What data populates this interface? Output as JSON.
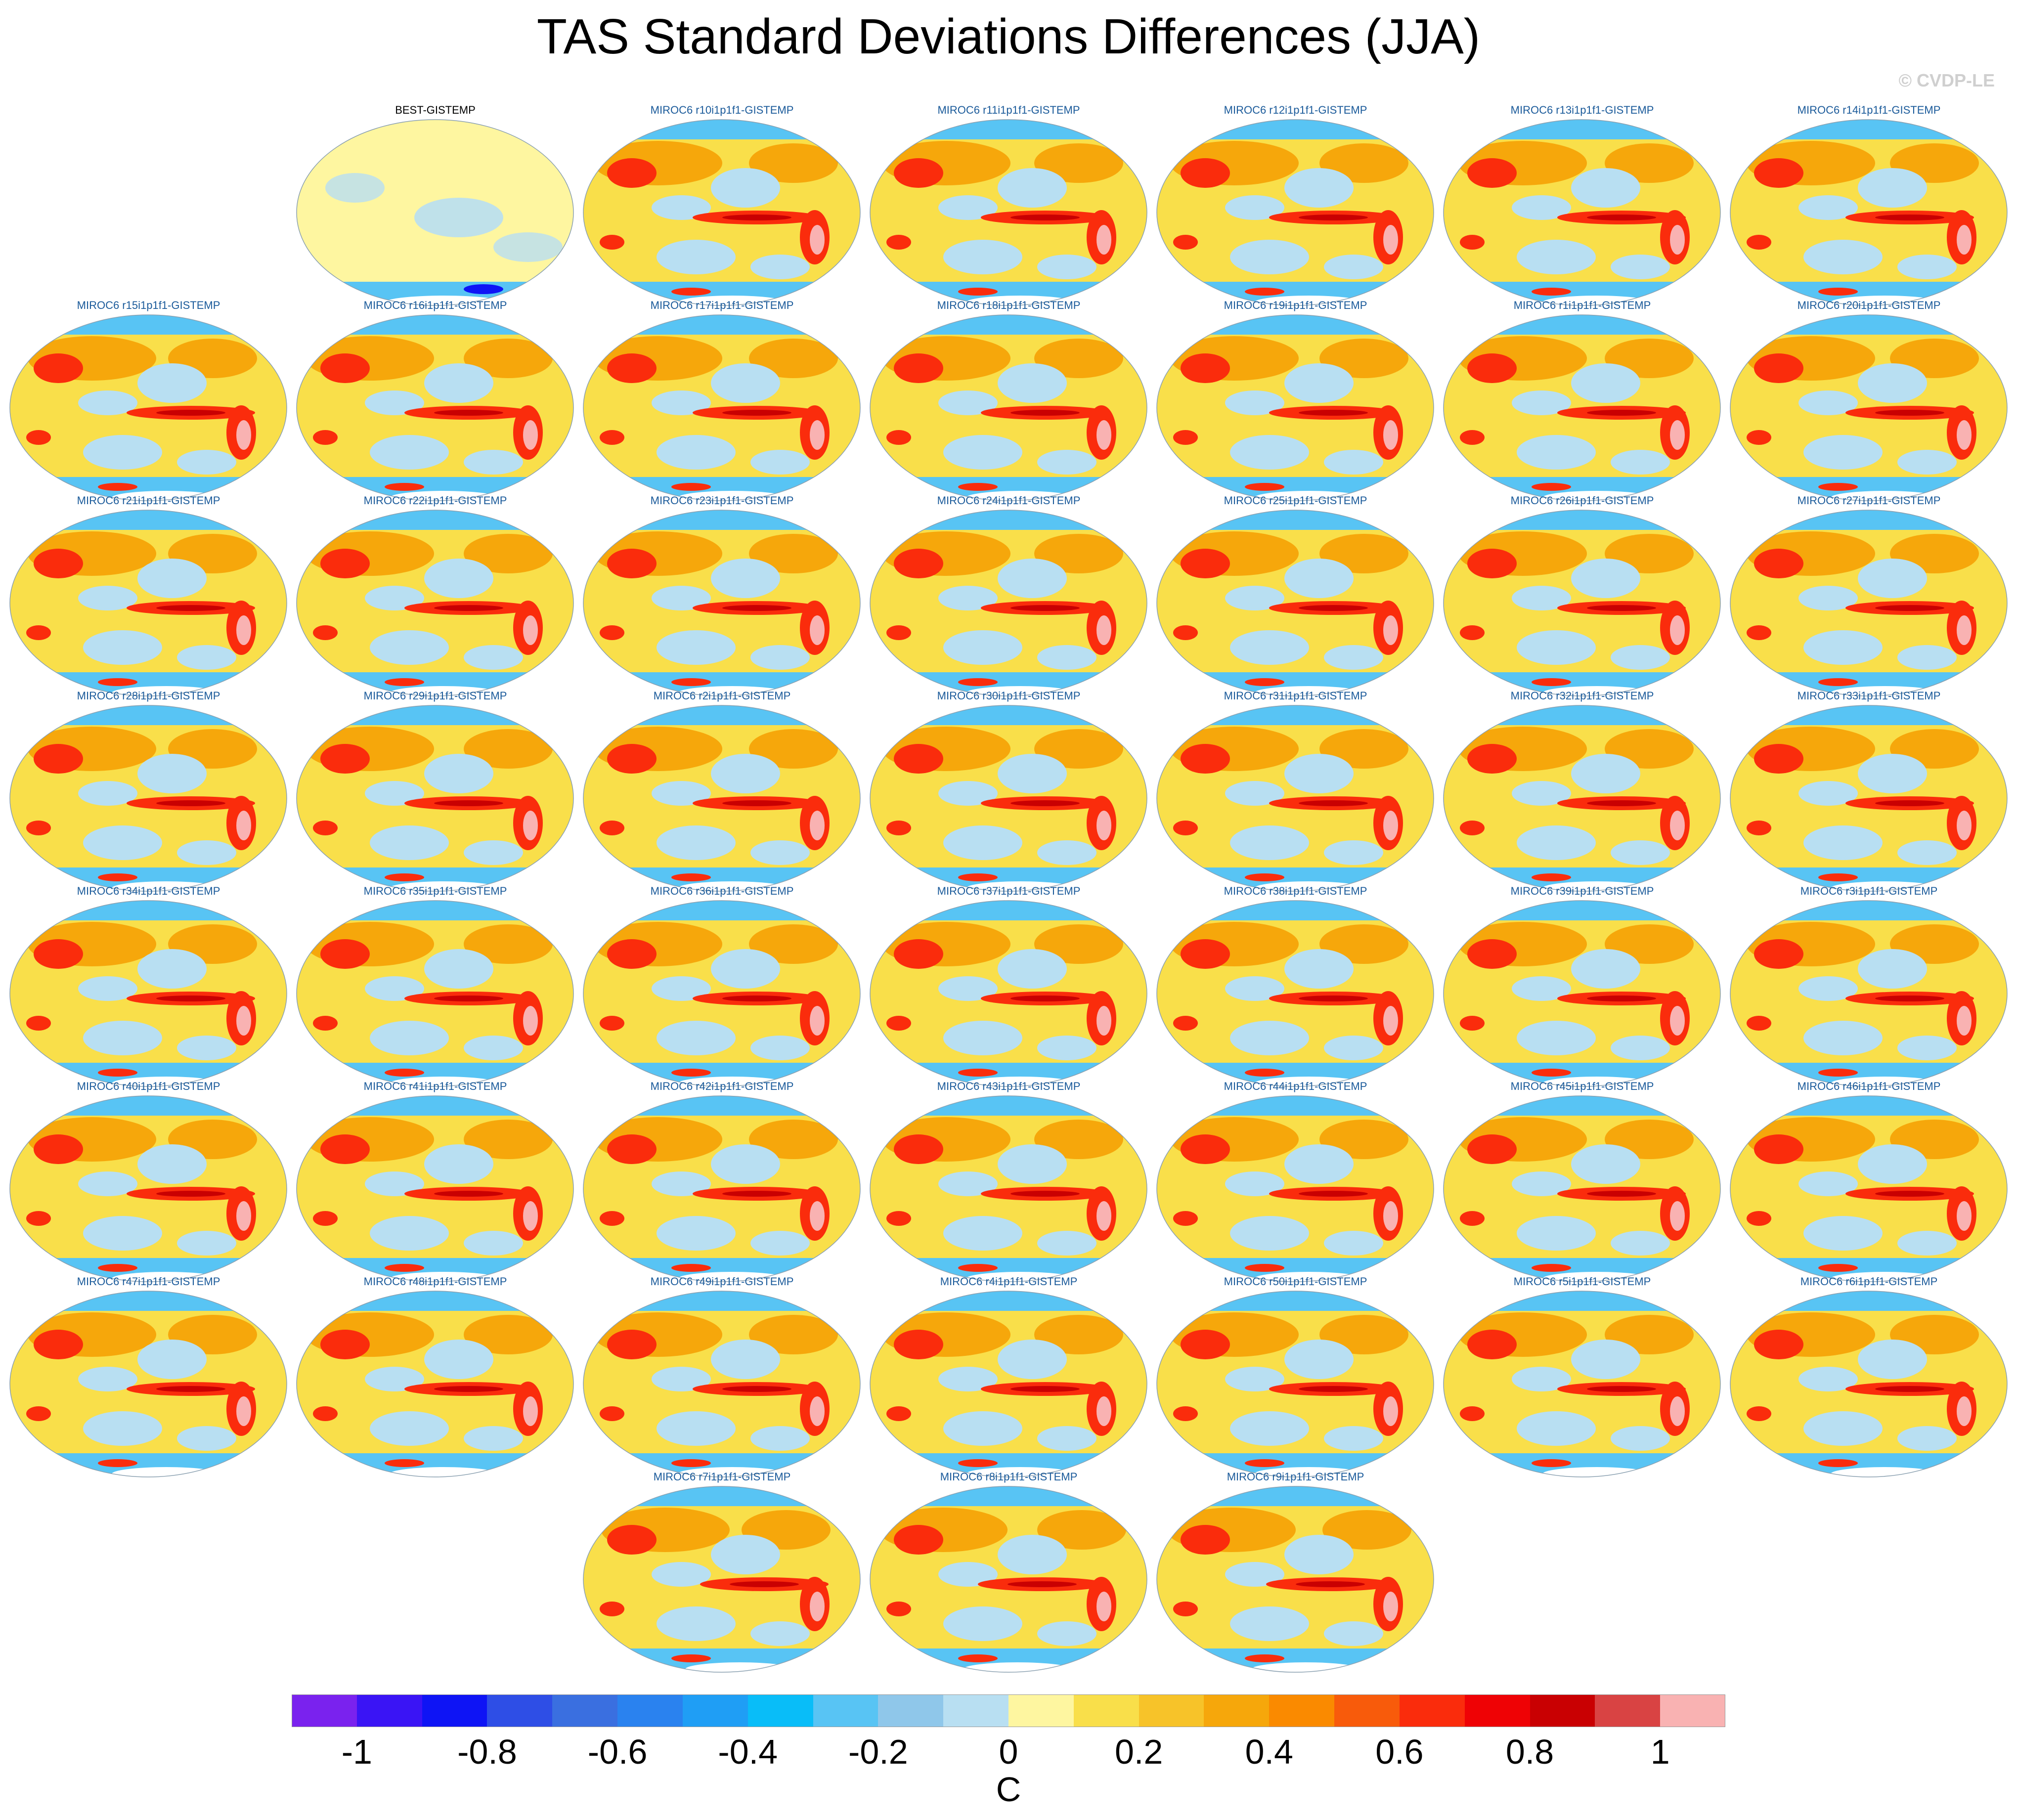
{
  "title": "TAS Standard Deviations Differences (JJA)",
  "credit": "© CVDP-LE",
  "panels": [
    {
      "label": "BEST-GISTEMP",
      "obs": true
    },
    {
      "label": "MIROC6 r10i1p1f1-GISTEMP"
    },
    {
      "label": "MIROC6 r11i1p1f1-GISTEMP"
    },
    {
      "label": "MIROC6 r12i1p1f1-GISTEMP"
    },
    {
      "label": "MIROC6 r13i1p1f1-GISTEMP"
    },
    {
      "label": "MIROC6 r14i1p1f1-GISTEMP"
    },
    {
      "label": "MIROC6 r15i1p1f1-GISTEMP"
    },
    {
      "label": "MIROC6 r16i1p1f1-GISTEMP"
    },
    {
      "label": "MIROC6 r17i1p1f1-GISTEMP"
    },
    {
      "label": "MIROC6 r18i1p1f1-GISTEMP"
    },
    {
      "label": "MIROC6 r19i1p1f1-GISTEMP"
    },
    {
      "label": "MIROC6 r1i1p1f1-GISTEMP"
    },
    {
      "label": "MIROC6 r20i1p1f1-GISTEMP"
    },
    {
      "label": "MIROC6 r21i1p1f1-GISTEMP"
    },
    {
      "label": "MIROC6 r22i1p1f1-GISTEMP"
    },
    {
      "label": "MIROC6 r23i1p1f1-GISTEMP"
    },
    {
      "label": "MIROC6 r24i1p1f1-GISTEMP"
    },
    {
      "label": "MIROC6 r25i1p1f1-GISTEMP"
    },
    {
      "label": "MIROC6 r26i1p1f1-GISTEMP"
    },
    {
      "label": "MIROC6 r27i1p1f1-GISTEMP"
    },
    {
      "label": "MIROC6 r28i1p1f1-GISTEMP"
    },
    {
      "label": "MIROC6 r29i1p1f1-GISTEMP"
    },
    {
      "label": "MIROC6 r2i1p1f1-GISTEMP"
    },
    {
      "label": "MIROC6 r30i1p1f1-GISTEMP"
    },
    {
      "label": "MIROC6 r31i1p1f1-GISTEMP"
    },
    {
      "label": "MIROC6 r32i1p1f1-GISTEMP"
    },
    {
      "label": "MIROC6 r33i1p1f1-GISTEMP"
    },
    {
      "label": "MIROC6 r34i1p1f1-GISTEMP"
    },
    {
      "label": "MIROC6 r35i1p1f1-GISTEMP"
    },
    {
      "label": "MIROC6 r36i1p1f1-GISTEMP"
    },
    {
      "label": "MIROC6 r37i1p1f1-GISTEMP"
    },
    {
      "label": "MIROC6 r38i1p1f1-GISTEMP"
    },
    {
      "label": "MIROC6 r39i1p1f1-GISTEMP"
    },
    {
      "label": "MIROC6 r3i1p1f1-GISTEMP"
    },
    {
      "label": "MIROC6 r40i1p1f1-GISTEMP"
    },
    {
      "label": "MIROC6 r41i1p1f1-GISTEMP"
    },
    {
      "label": "MIROC6 r42i1p1f1-GISTEMP"
    },
    {
      "label": "MIROC6 r43i1p1f1-GISTEMP"
    },
    {
      "label": "MIROC6 r44i1p1f1-GISTEMP"
    },
    {
      "label": "MIROC6 r45i1p1f1-GISTEMP"
    },
    {
      "label": "MIROC6 r46i1p1f1-GISTEMP"
    },
    {
      "label": "MIROC6 r47i1p1f1-GISTEMP"
    },
    {
      "label": "MIROC6 r48i1p1f1-GISTEMP"
    },
    {
      "label": "MIROC6 r49i1p1f1-GISTEMP"
    },
    {
      "label": "MIROC6 r4i1p1f1-GISTEMP"
    },
    {
      "label": "MIROC6 r50i1p1f1-GISTEMP"
    },
    {
      "label": "MIROC6 r5i1p1f1-GISTEMP"
    },
    {
      "label": "MIROC6 r6i1p1f1-GISTEMP"
    },
    {
      "label": "MIROC6 r7i1p1f1-GISTEMP"
    },
    {
      "label": "MIROC6 r8i1p1f1-GISTEMP"
    },
    {
      "label": "MIROC6 r9i1p1f1-GISTEMP"
    }
  ],
  "colorbar": {
    "colors": [
      "#7a22ee",
      "#3a14f5",
      "#0e14f5",
      "#2e4ee6",
      "#3a6fe0",
      "#2a82ef",
      "#1f9ef5",
      "#09bdf8",
      "#58c4f4",
      "#8fc7ea",
      "#b8dff2",
      "#fef6a0",
      "#f9df4a",
      "#f7c329",
      "#f6a70b",
      "#fa8a00",
      "#f85b0b",
      "#fa2c0c",
      "#ef0205",
      "#c90002",
      "#d94343",
      "#f9b2b2"
    ],
    "ticks": [
      "-1",
      "-0.8",
      "-0.6",
      "-0.4",
      "-0.2",
      "0",
      "0.2",
      "0.4",
      "0.6",
      "0.8",
      "1"
    ],
    "unit": "C"
  }
}
